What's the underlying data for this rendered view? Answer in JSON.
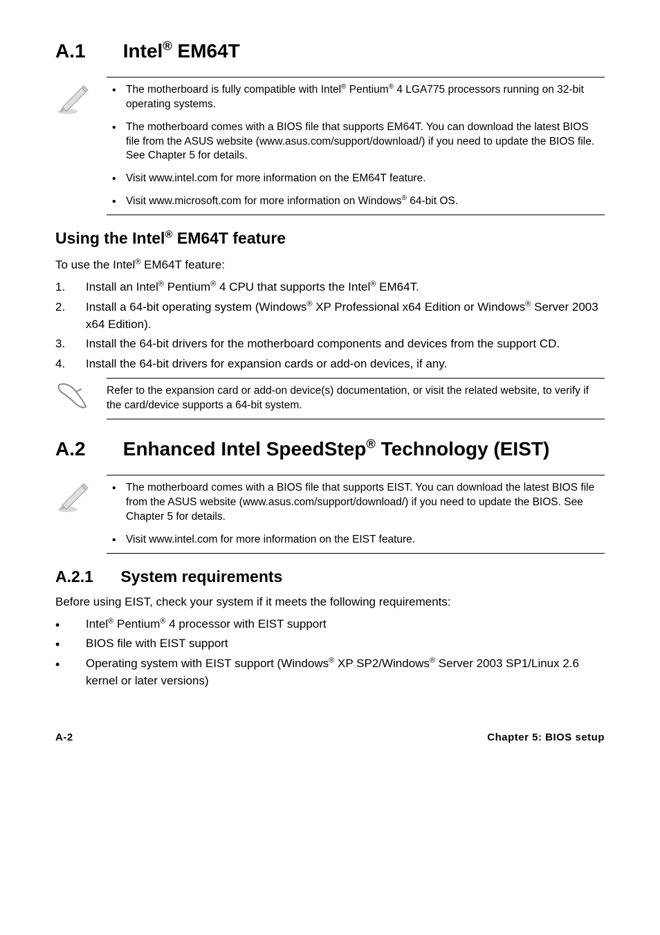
{
  "section_a1": {
    "number": "A.1",
    "title_html": "Intel<sup>®</sup> EM64T"
  },
  "note1": {
    "items": [
      "The motherboard is fully compatible with Intel<sup>®</sup> Pentium<sup>®</sup> 4 LGA775 processors running on 32-bit operating systems.",
      "The motherboard comes with a BIOS file that supports EM64T. You can download the latest BIOS file from the ASUS website (www.asus.com/support/download/) if you need to update the BIOS file. See Chapter 5 for details.",
      "Visit www.intel.com for more information on the EM64T feature.",
      "Visit www.microsoft.com for more information on Windows<sup>®</sup> 64-bit OS."
    ]
  },
  "using_heading_html": "Using the Intel<sup>®</sup> EM64T feature",
  "using_intro_html": "To use the Intel<sup>®</sup> EM64T feature:",
  "using_steps": [
    "Install an Intel<sup>®</sup> Pentium<sup>®</sup> 4 CPU that supports the Intel<sup>®</sup> EM64T.",
    "Install a 64-bit operating system (Windows<sup>®</sup> XP Professional x64 Edition or Windows<sup>®</sup> Server 2003 x64 Edition).",
    "Install the 64-bit drivers for the motherboard components and devices from the support CD.",
    "Install the 64-bit drivers for expansion cards or add-on devices, if any."
  ],
  "note2": {
    "text": "Refer to the expansion card or add-on device(s) documentation, or visit the related website, to verify if the card/device supports a 64-bit system."
  },
  "section_a2": {
    "number": "A.2",
    "title_html": "Enhanced Intel SpeedStep<sup>®</sup> Technology (EIST)"
  },
  "note3": {
    "items": [
      "The motherboard comes with a BIOS file that supports EIST. You can download the latest BIOS file from the ASUS website (www.asus.com/support/download/) if you need to update the BIOS. See Chapter 5 for details.",
      "Visit www.intel.com for more information on the EIST feature."
    ]
  },
  "section_a21": {
    "number": "A.2.1",
    "title": "System requirements"
  },
  "req_intro": "Before using EIST, check your system if it meets the following requirements:",
  "req_items": [
    "Intel<sup>®</sup> Pentium<sup>®</sup> 4 processor with EIST support",
    "BIOS file with EIST support",
    "Operating system with EIST support (Windows<sup>®</sup> XP SP2/Windows<sup>®</sup> Server 2003 SP1/Linux 2.6 kernel or later versions)"
  ],
  "footer": {
    "left": "A-2",
    "right": "Chapter 5: BIOS setup"
  },
  "colors": {
    "text": "#000000",
    "bg": "#ffffff",
    "rule": "#000000",
    "icon_fill": "#c8c8c8",
    "icon_stroke": "#8a8a8a"
  }
}
